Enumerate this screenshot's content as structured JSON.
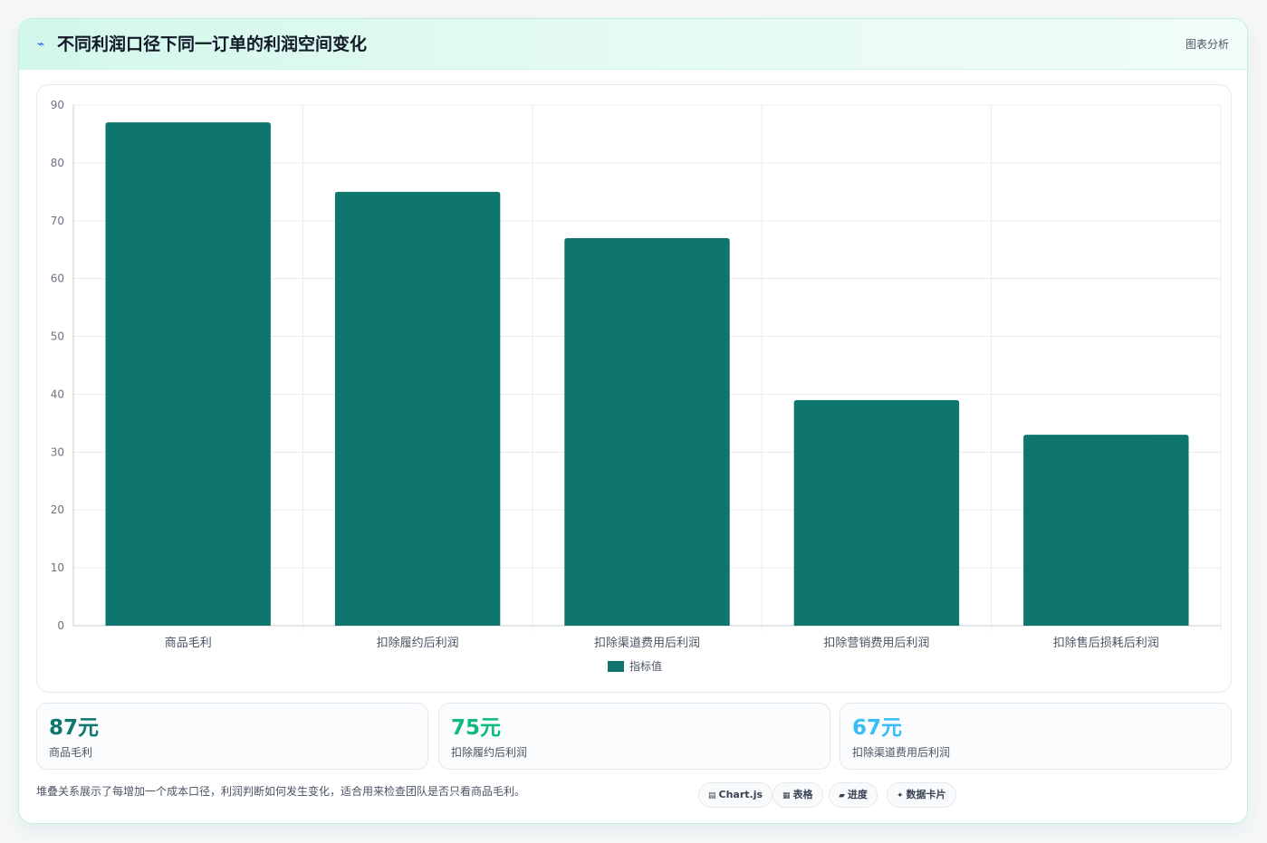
{
  "header": {
    "icon": "⌁",
    "title": "不同利润口径下同一订单的利润空间变化",
    "tag": "图表分析"
  },
  "chart_data": {
    "type": "bar",
    "categories": [
      "商品毛利",
      "扣除履约后利润",
      "扣除渠道费用后利润",
      "扣除营销费用后利润",
      "扣除售后损耗后利润"
    ],
    "series": [
      {
        "name": "指标值",
        "values": [
          87,
          75,
          67,
          39,
          33
        ]
      }
    ],
    "ylim": [
      0,
      90
    ],
    "yticks": [
      0,
      10,
      20,
      30,
      40,
      50,
      60,
      70,
      80,
      90
    ],
    "grid": true,
    "legend": "bottom",
    "bar_color": "#0f766e"
  },
  "stats": [
    {
      "value": "87元",
      "label": "商品毛利",
      "color": "#0f766e"
    },
    {
      "value": "75元",
      "label": "扣除履约后利润",
      "color": "#10b981"
    },
    {
      "value": "67元",
      "label": "扣除渠道费用后利润",
      "color": "#38bdf8"
    }
  ],
  "footnote": "堆叠关系展示了每增加一个成本口径，利润判断如何发生变化，适合用来检查团队是否只看商品毛利。",
  "chips": [
    {
      "icon": "▤",
      "icon_name": "chart-icon",
      "label": "Chart.js"
    },
    {
      "icon": "▦",
      "icon_name": "table-icon",
      "label": "表格"
    },
    {
      "icon": "▰",
      "icon_name": "progress-icon",
      "label": "进度"
    },
    {
      "icon": "✦",
      "icon_name": "sparkle-icon",
      "label": "数据卡片"
    }
  ]
}
